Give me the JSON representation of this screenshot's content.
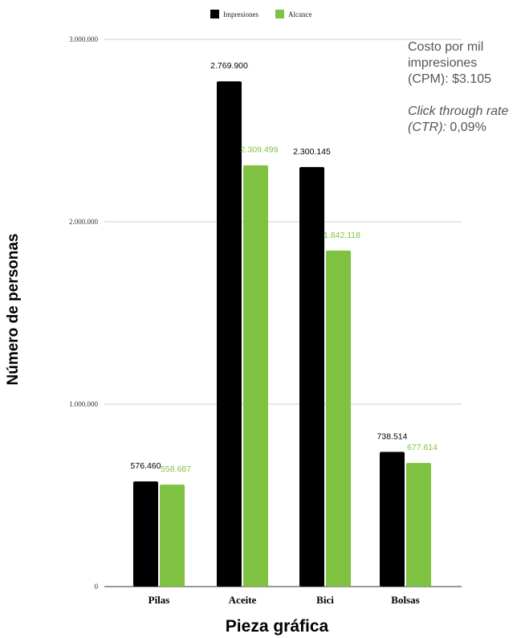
{
  "chart_data": {
    "type": "bar",
    "categories": [
      "Pilas",
      "Aceite",
      "Bici",
      "Bolsas"
    ],
    "series": [
      {
        "name": "Impresiones",
        "color": "#000000",
        "values": [
          576460,
          2769900,
          2300145,
          738514
        ],
        "labels": [
          "576.460",
          "2.769.900",
          "2.300.145",
          "738.514"
        ]
      },
      {
        "name": "Alcance",
        "color": "#7fc241",
        "values": [
          558687,
          2309499,
          1842118,
          677614
        ],
        "labels": [
          "558.687",
          "2.309.499",
          "1.842.118",
          "677.614"
        ]
      }
    ],
    "ylim": [
      0,
      3000000
    ],
    "yticks": [
      0,
      1000000,
      2000000,
      3000000
    ],
    "ytick_labels": [
      "0",
      "1.000.000",
      "2.000.000",
      "3.000.000"
    ],
    "xlabel": "Pieza gráfica",
    "ylabel": "Número de personas",
    "grid": true,
    "legend_position": "top-center"
  },
  "annotation": {
    "cpm_text": "Costo por mil impresiones (CPM): $3.105",
    "ctr_label": "Click through rate (CTR):",
    "ctr_value": " 0,09%"
  }
}
